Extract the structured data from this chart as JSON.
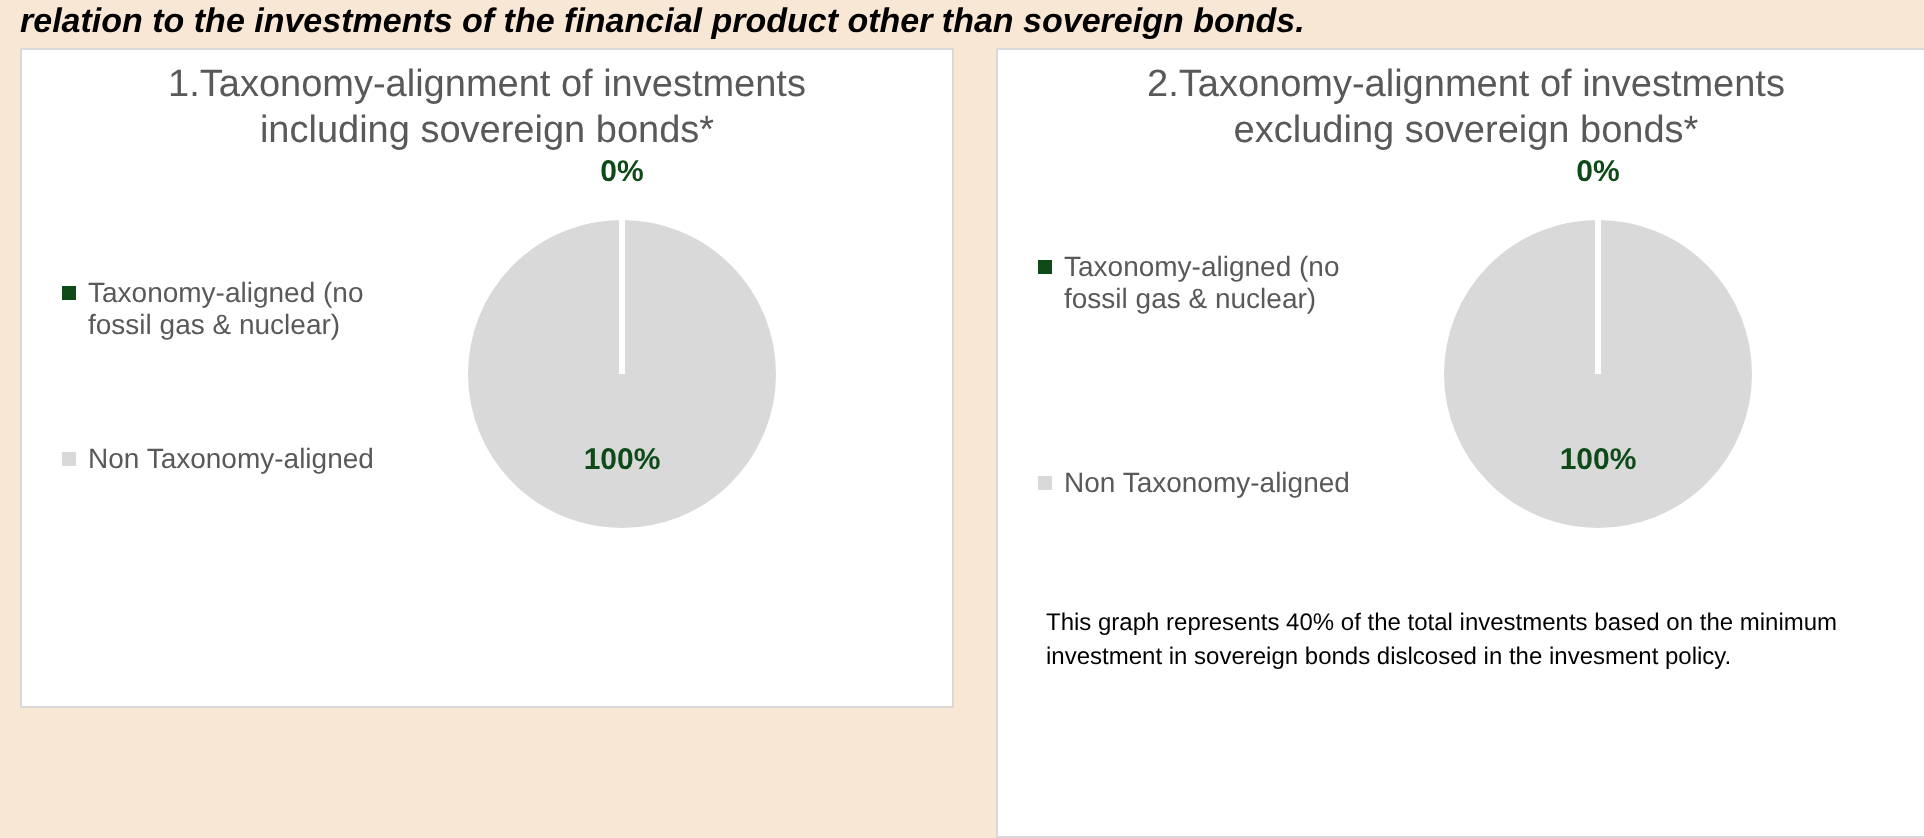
{
  "chart_data": [
    {
      "type": "other",
      "title": "relation to the investments of the financial product other than sovereign bonds."
    },
    {
      "type": "pie",
      "title": "1.Taxonomy-alignment of investments including sovereign bonds*",
      "categories": [
        "Taxonomy-aligned (no fossil gas & nuclear)",
        "Non Taxonomy-aligned"
      ],
      "values": [
        0,
        100
      ],
      "colors": [
        "#0e4a17",
        "#d9d9d9"
      ],
      "value_labels": [
        "0%",
        "100%"
      ],
      "legend": "left"
    },
    {
      "type": "pie",
      "title": "2.Taxonomy-alignment of investments excluding sovereign bonds*",
      "categories": [
        "Taxonomy-aligned (no fossil gas & nuclear)",
        "Non Taxonomy-aligned"
      ],
      "values": [
        0,
        100
      ],
      "colors": [
        "#0e4a17",
        "#d9d9d9"
      ],
      "value_labels": [
        "0%",
        "100%"
      ],
      "legend": "left",
      "annotations": [
        "This graph represents 40% of the total investments based on the minimum investment in sovereign bonds dislcosed in the invesment policy."
      ]
    }
  ]
}
